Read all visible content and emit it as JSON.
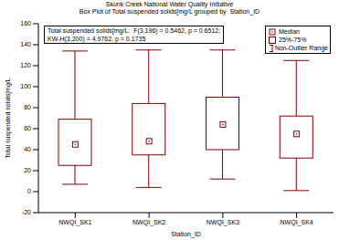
{
  "chart_data": {
    "type": "box",
    "title": "Skunk Creek National Water Quality Initiative",
    "subtitle": "Box Plot of Total suspended solids[mg/L grouped by  Station_ID",
    "x_label": "Station_ID",
    "y_label": "Total suspended solids[mg/L",
    "categories": [
      "NWQI_SK1",
      "NWQI_SK2",
      "NWQI_SK3",
      "NWQI_SK4"
    ],
    "series": [
      {
        "name": "Median",
        "color": "#800000",
        "values": [
          45,
          48,
          64,
          55
        ]
      },
      {
        "name": "25%-75%",
        "color": "#800000",
        "values": [
          [
            25,
            69
          ],
          [
            35,
            84
          ],
          [
            40,
            90
          ],
          [
            32,
            72
          ]
        ]
      },
      {
        "name": "Non-Outlier Range",
        "color": "#800000",
        "values": [
          [
            7,
            134
          ],
          [
            4,
            135
          ],
          [
            12,
            135
          ],
          [
            1,
            125
          ]
        ]
      }
    ],
    "annotations": [
      "Total suspended solids[mg/L:  F(3,196) = 0.5462, p = 0.6512;",
      "KW-H(3,200) = 4.9762, p = 0.1735"
    ],
    "ylim": [
      -20,
      160
    ],
    "yticks": [
      -20,
      0,
      20,
      40,
      60,
      80,
      100,
      120,
      140,
      160
    ],
    "grid": false,
    "legend": "top right"
  }
}
